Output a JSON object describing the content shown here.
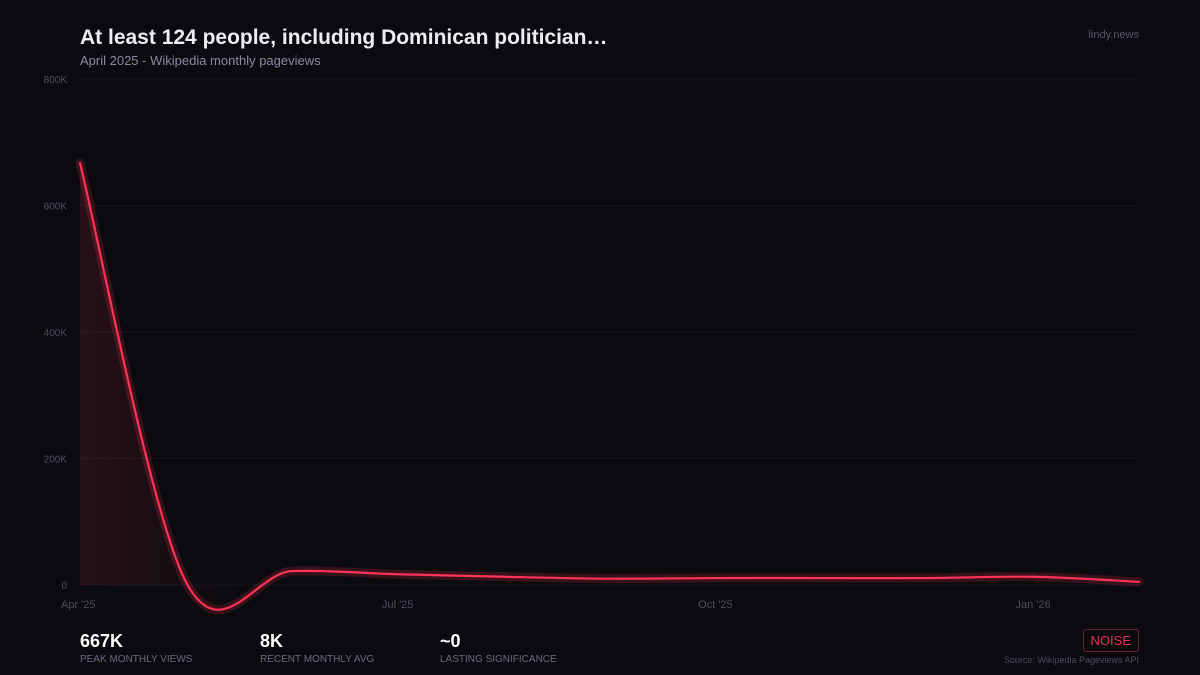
{
  "header": {
    "title": "At least 124 people, including Dominican politician…",
    "subtitle": "April 2025  -  Wikipedia monthly pageviews",
    "brand": "lindy.news"
  },
  "chart_data": {
    "type": "line",
    "x": [
      "2025-04",
      "2025-05",
      "2025-06",
      "2025-07",
      "2025-08",
      "2025-09",
      "2025-10",
      "2025-11",
      "2025-12",
      "2026-01",
      "2026-02"
    ],
    "values": [
      667000,
      5000,
      22000,
      17000,
      13000,
      10000,
      11000,
      11000,
      11000,
      13000,
      5000
    ],
    "ylim": [
      0,
      800000
    ],
    "yticks": [
      {
        "v": 0,
        "label": "0"
      },
      {
        "v": 200000,
        "label": "200K"
      },
      {
        "v": 400000,
        "label": "400K"
      },
      {
        "v": 600000,
        "label": "600K"
      },
      {
        "v": 800000,
        "label": "800K"
      }
    ],
    "xticks": [
      {
        "i": 0,
        "label": "Apr '25"
      },
      {
        "i": 3,
        "label": "Jul '25"
      },
      {
        "i": 6,
        "label": "Oct '25"
      },
      {
        "i": 9,
        "label": "Jan '26"
      }
    ],
    "grid": true,
    "line_color": "#ff3355"
  },
  "stats": [
    {
      "value": "667K",
      "label": "PEAK MONTHLY VIEWS"
    },
    {
      "value": "8K",
      "label": "RECENT MONTHLY AVG"
    },
    {
      "value": "~0",
      "label": "LASTING SIGNIFICANCE"
    }
  ],
  "badge": "NOISE",
  "source": "Source: Wikipedia Pageviews API"
}
